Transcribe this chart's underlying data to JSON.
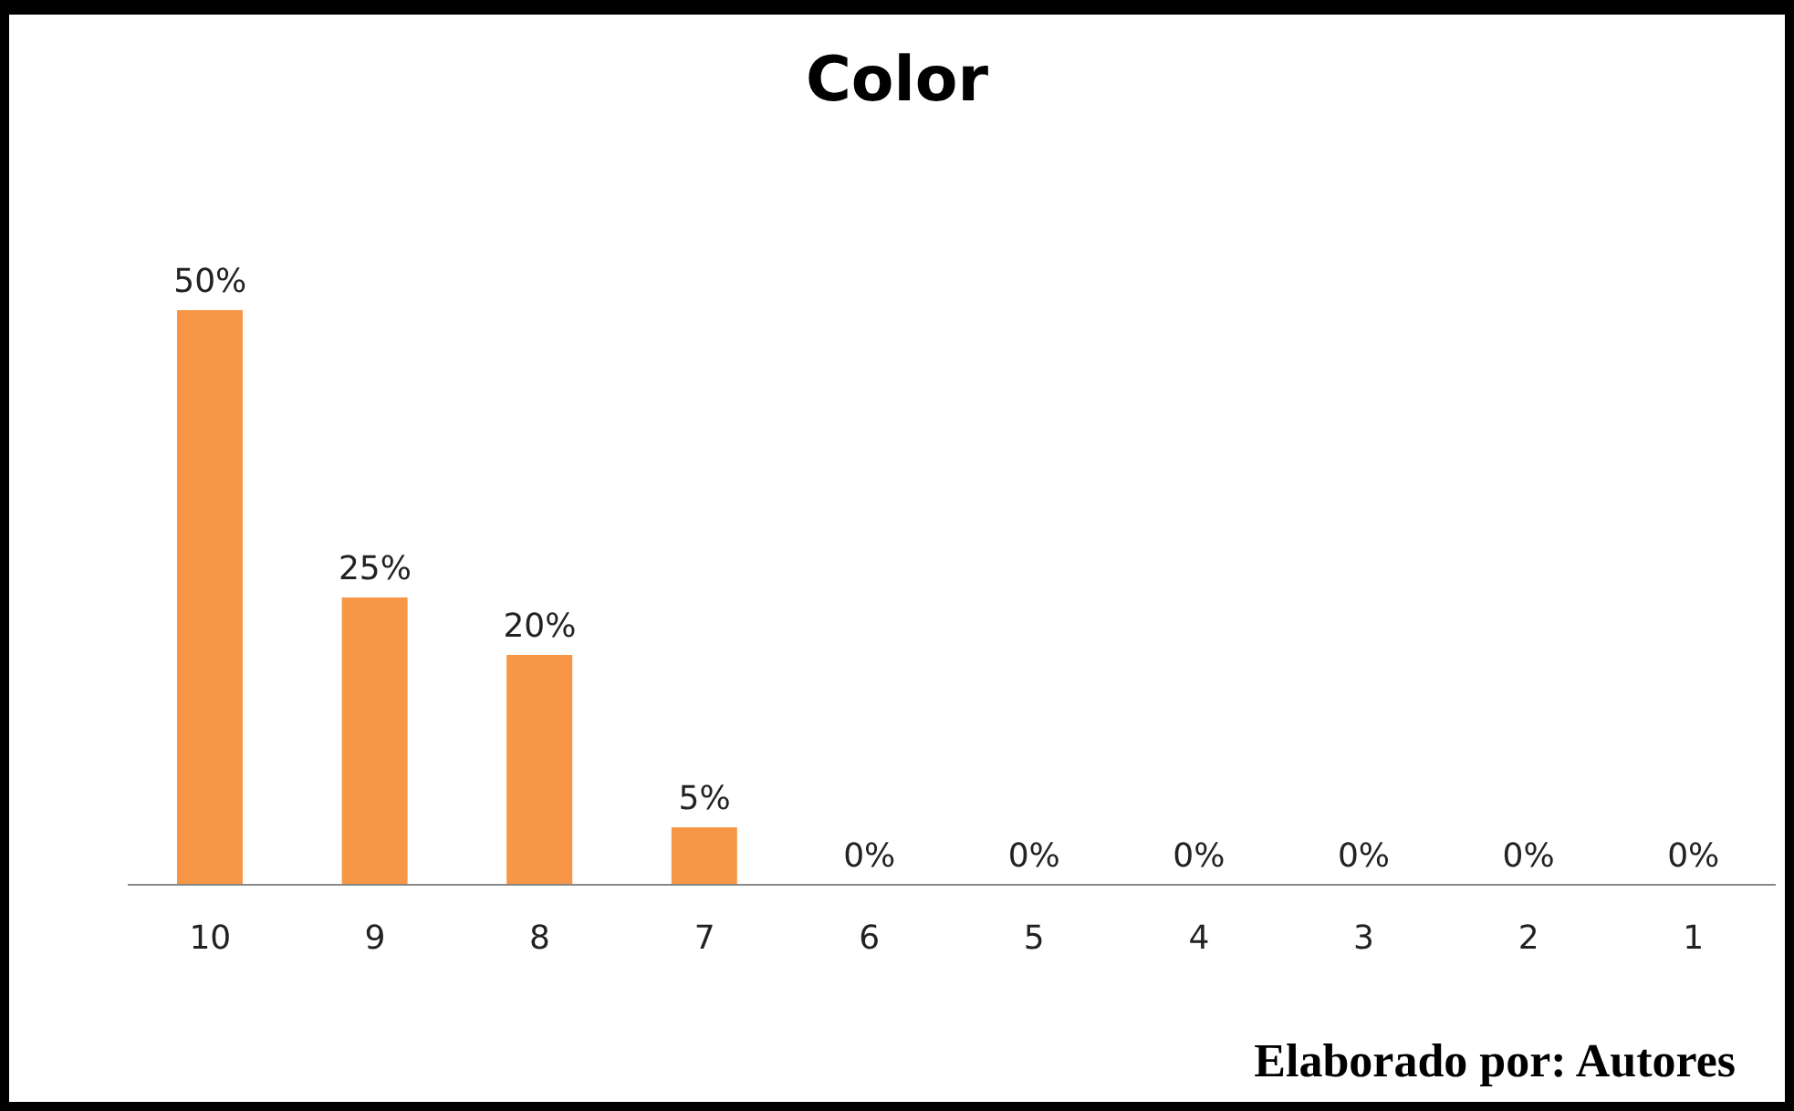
{
  "chart_data": {
    "type": "bar",
    "title": "Color",
    "categories": [
      "10",
      "9",
      "8",
      "7",
      "6",
      "5",
      "4",
      "3",
      "2",
      "1"
    ],
    "values": [
      50,
      25,
      20,
      5,
      0,
      0,
      0,
      0,
      0,
      0
    ],
    "value_labels": [
      "50%",
      "25%",
      "20%",
      "5%",
      "0%",
      "0%",
      "0%",
      "0%",
      "0%",
      "0%"
    ],
    "color": "#f79646",
    "annotations": [
      "Elaborado por: Autores"
    ]
  }
}
